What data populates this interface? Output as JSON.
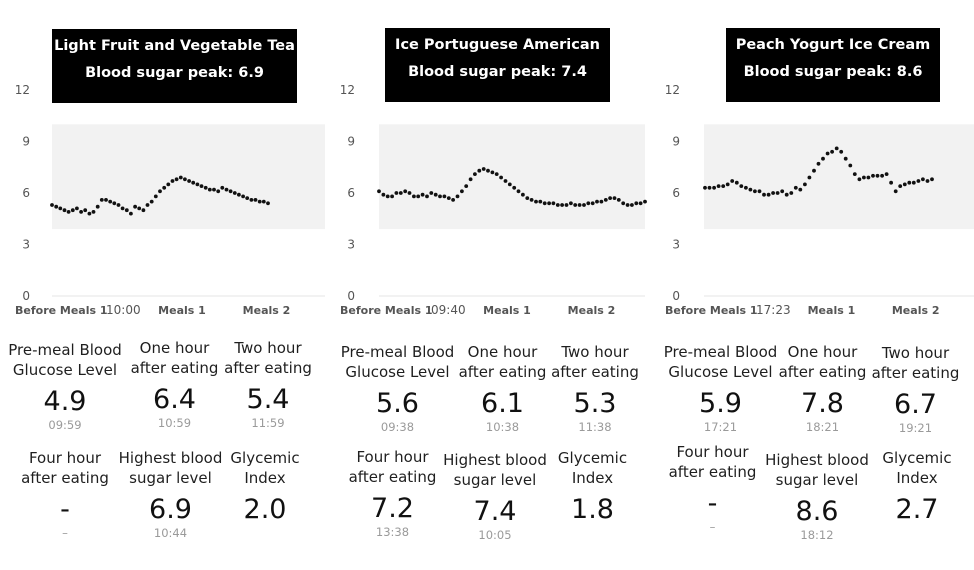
{
  "panels": [
    {
      "title": "Light Fruit and Vegetable Tea",
      "peak_label": "Blood sugar peak: 6.9",
      "xlabels": [
        "Before Meals 1",
        "10:00",
        "Meals 1",
        "Meals 2"
      ],
      "metrics": {
        "premeal": {
          "label1": "Pre-meal Blood",
          "label2": "Glucose Level",
          "value": "4.9",
          "time": "09:59"
        },
        "onehour": {
          "label1": "One hour",
          "label2": "after eating",
          "value": "6.4",
          "time": "10:59"
        },
        "twohour": {
          "label1": "Two hour",
          "label2": "after eating",
          "value": "5.4",
          "time": "11:59"
        },
        "fourhour": {
          "label1": "Four hour",
          "label2": "after eating",
          "value": "-",
          "time": "–"
        },
        "highest": {
          "label1": "Highest blood",
          "label2": "sugar level",
          "value": "6.9",
          "time": "10:44"
        },
        "gi": {
          "label1": "Glycemic",
          "label2": "Index",
          "value": "2.0",
          "time": ""
        }
      }
    },
    {
      "title": "Ice Portuguese American",
      "peak_label": "Blood sugar peak: 7.4",
      "xlabels": [
        "Before Meals 1",
        "09:40",
        "Meals 1",
        "Meals 2"
      ],
      "metrics": {
        "premeal": {
          "label1": "Pre-meal Blood",
          "label2": "Glucose Level",
          "value": "5.6",
          "time": "09:38"
        },
        "onehour": {
          "label1": "One hour",
          "label2": "after eating",
          "value": "6.1",
          "time": "10:38"
        },
        "twohour": {
          "label1": "Two hour",
          "label2": "after eating",
          "value": "5.3",
          "time": "11:38"
        },
        "fourhour": {
          "label1": "Four hour",
          "label2": "after eating",
          "value": "7.2",
          "time": "13:38"
        },
        "highest": {
          "label1": "Highest blood",
          "label2": "sugar level",
          "value": "7.4",
          "time": "10:05"
        },
        "gi": {
          "label1": "Glycemic",
          "label2": "Index",
          "value": "1.8",
          "time": ""
        }
      }
    },
    {
      "title": "Peach Yogurt Ice Cream",
      "peak_label": "Blood sugar peak: 8.6",
      "xlabels": [
        "Before Meals 1",
        "17:23",
        "Meals 1",
        "Meals 2"
      ],
      "metrics": {
        "premeal": {
          "label1": "Pre-meal Blood",
          "label2": "Glucose Level",
          "value": "5.9",
          "time": "17:21"
        },
        "onehour": {
          "label1": "One hour",
          "label2": "after eating",
          "value": "7.8",
          "time": "18:21"
        },
        "twohour": {
          "label1": "Two hour",
          "label2": "after eating",
          "value": "6.7",
          "time": "19:21"
        },
        "fourhour": {
          "label1": "Four hour",
          "label2": "after eating",
          "value": "-",
          "time": "–"
        },
        "highest": {
          "label1": "Highest blood",
          "label2": "sugar level",
          "value": "8.6",
          "time": "18:12"
        },
        "gi": {
          "label1": "Glycemic",
          "label2": "Index",
          "value": "2.7",
          "time": ""
        }
      }
    }
  ],
  "colors": {
    "band": "#f2f2f2",
    "dots": "#111111",
    "title_bg": "#000000",
    "title_text": "#ffffff"
  },
  "chart_data": [
    {
      "type": "scatter",
      "title": "Light Fruit and Vegetable Tea",
      "yticks": [
        0,
        3,
        6,
        9,
        12
      ],
      "ylim": [
        0,
        12
      ],
      "target_band": [
        3.9,
        10
      ],
      "y": [
        5.3,
        5.2,
        5.1,
        5.0,
        4.9,
        5.0,
        5.1,
        4.9,
        5.0,
        4.8,
        4.9,
        5.2,
        5.6,
        5.6,
        5.5,
        5.4,
        5.3,
        5.1,
        5.0,
        4.8,
        5.2,
        5.1,
        5.0,
        5.3,
        5.5,
        5.8,
        6.1,
        6.3,
        6.5,
        6.7,
        6.8,
        6.9,
        6.8,
        6.7,
        6.6,
        6.5,
        6.4,
        6.3,
        6.2,
        6.2,
        6.1,
        6.3,
        6.2,
        6.1,
        6.0,
        5.9,
        5.8,
        5.7,
        5.6,
        5.6,
        5.5,
        5.5,
        5.4
      ]
    },
    {
      "type": "scatter",
      "title": "Ice Portuguese American",
      "yticks": [
        0,
        3,
        6,
        9,
        12
      ],
      "ylim": [
        0,
        12
      ],
      "target_band": [
        3.9,
        10
      ],
      "y": [
        6.1,
        5.9,
        5.8,
        5.8,
        6.0,
        6.0,
        6.1,
        6.0,
        5.8,
        5.8,
        5.9,
        5.8,
        6.0,
        5.9,
        5.8,
        5.8,
        5.7,
        5.6,
        5.8,
        6.1,
        6.4,
        6.8,
        7.1,
        7.3,
        7.4,
        7.3,
        7.2,
        7.1,
        6.9,
        6.7,
        6.5,
        6.3,
        6.1,
        5.9,
        5.7,
        5.6,
        5.5,
        5.5,
        5.4,
        5.4,
        5.4,
        5.3,
        5.3,
        5.3,
        5.4,
        5.3,
        5.3,
        5.3,
        5.4,
        5.4,
        5.5,
        5.5,
        5.6,
        5.7,
        5.7,
        5.6,
        5.4,
        5.3,
        5.3,
        5.4,
        5.4,
        5.5
      ]
    },
    {
      "type": "scatter",
      "title": "Peach Yogurt Ice Cream",
      "yticks": [
        0,
        3,
        6,
        9,
        12
      ],
      "ylim": [
        0,
        12
      ],
      "target_band": [
        3.9,
        10
      ],
      "y": [
        6.3,
        6.3,
        6.3,
        6.4,
        6.4,
        6.5,
        6.7,
        6.6,
        6.4,
        6.3,
        6.2,
        6.1,
        6.1,
        5.9,
        5.9,
        6.0,
        6.0,
        6.1,
        5.9,
        6.0,
        6.3,
        6.2,
        6.5,
        6.9,
        7.3,
        7.7,
        8.0,
        8.3,
        8.4,
        8.6,
        8.4,
        8.0,
        7.6,
        7.1,
        6.8,
        6.9,
        6.9,
        7.0,
        7.0,
        7.0,
        7.1,
        6.6,
        6.1,
        6.4,
        6.5,
        6.6,
        6.6,
        6.7,
        6.8,
        6.7,
        6.8
      ]
    }
  ]
}
